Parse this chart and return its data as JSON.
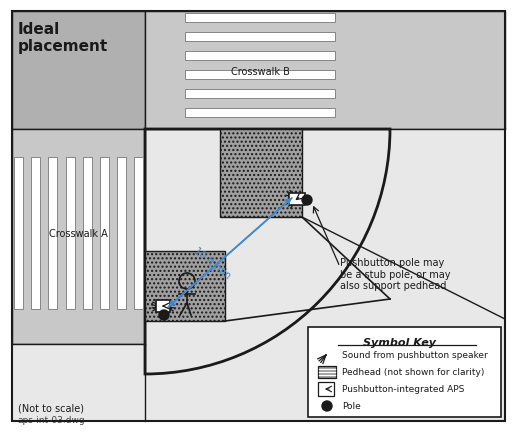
{
  "title": "Ideal\nplacement",
  "not_to_scale": "(Not to scale)",
  "dwg_label": "aps-int-03.dwg",
  "crosswalk_a_label": "Crosswalk A",
  "crosswalk_b_label": "Crosswalk B",
  "annotation_text": "Pushbutton pole may\nbe a stub pole, or may\nalso support pedhead",
  "dimension_label": "10 ft min",
  "symbol_key_title": "Symbol Key",
  "symbol_entries": [
    "Sound from pushbutton speaker",
    "Pedhead (not shown for clarity)",
    "Pushbutton-integrated APS",
    "Pole"
  ],
  "line_color": "#1a1a1a",
  "dimension_color": "#4488cc",
  "fig_width": 4.97,
  "fig_height": 4.14,
  "street_gray": "#c8c8c8",
  "sidewalk_gray": "#e8e8e8",
  "ramp_gray": "#a0a0a0",
  "intersection_gray": "#b0b0b0"
}
